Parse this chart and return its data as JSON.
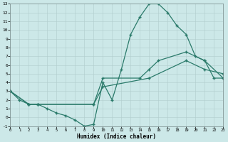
{
  "background_color": "#cce8e8",
  "grid_color": "#b0cccc",
  "line_color": "#2a7a6a",
  "xlabel": "Humidex (Indice chaleur)",
  "xlim": [
    0,
    23
  ],
  "ylim": [
    -1,
    13
  ],
  "xticks": [
    0,
    1,
    2,
    3,
    4,
    5,
    6,
    7,
    8,
    9,
    10,
    11,
    12,
    13,
    14,
    15,
    16,
    17,
    18,
    19,
    20,
    21,
    22,
    23
  ],
  "yticks": [
    -1,
    0,
    1,
    2,
    3,
    4,
    5,
    6,
    7,
    8,
    9,
    10,
    11,
    12,
    13
  ],
  "curve1_x": [
    0,
    1,
    2,
    3,
    4,
    5,
    6,
    7,
    8,
    9,
    10,
    11,
    12,
    13,
    14,
    15,
    16,
    17,
    18,
    19,
    20,
    21,
    22,
    23
  ],
  "curve1_y": [
    3.0,
    2.0,
    1.5,
    1.5,
    1.0,
    0.5,
    0.2,
    -0.3,
    -1.0,
    -0.8,
    4.0,
    2.0,
    5.5,
    9.5,
    11.5,
    13.0,
    13.0,
    12.0,
    10.5,
    9.5,
    7.0,
    6.5,
    4.5,
    4.5
  ],
  "curve2_x": [
    0,
    2,
    3,
    9,
    10,
    14,
    15,
    16,
    19,
    21,
    23
  ],
  "curve2_y": [
    3.0,
    1.5,
    1.5,
    1.5,
    4.5,
    4.5,
    5.5,
    6.5,
    7.5,
    6.5,
    4.5
  ],
  "curve3_x": [
    0,
    2,
    3,
    9,
    10,
    15,
    19,
    21,
    23
  ],
  "curve3_y": [
    3.0,
    1.5,
    1.5,
    1.5,
    3.5,
    4.5,
    6.5,
    5.5,
    5.0
  ]
}
